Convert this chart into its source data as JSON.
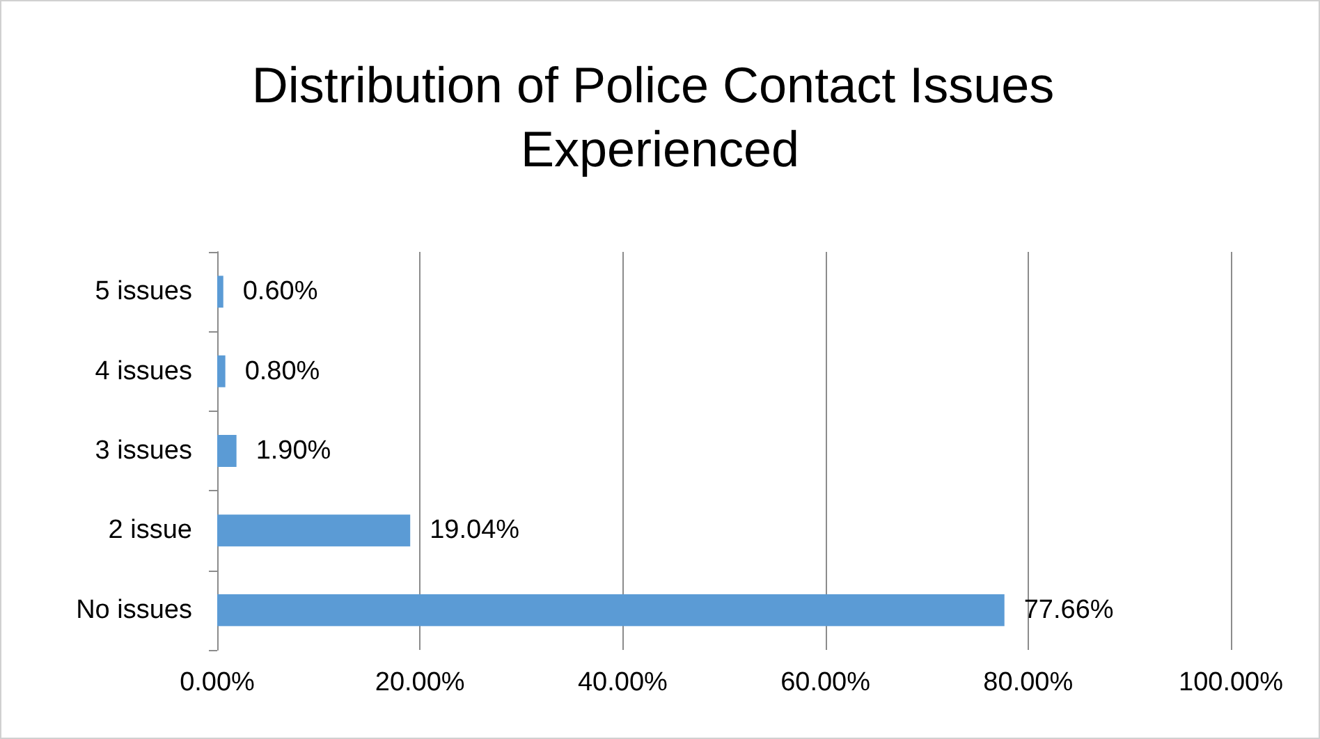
{
  "chart_data": {
    "type": "bar",
    "orientation": "horizontal",
    "title": "Distribution of Police Contact Issues Experienced",
    "categories": [
      "5 issues",
      "4 issues",
      "3 issues",
      "2 issue",
      "No issues"
    ],
    "values": [
      0.6,
      0.8,
      1.9,
      19.04,
      77.66
    ],
    "value_labels": [
      "0.60%",
      "0.80%",
      "1.90%",
      "19.04%",
      "77.66%"
    ],
    "color": "#5b9bd5",
    "xlim": [
      0,
      100
    ],
    "xticks": [
      {
        "value": 0,
        "label": "0.00%"
      },
      {
        "value": 20,
        "label": "20.00%"
      },
      {
        "value": 40,
        "label": "40.00%"
      },
      {
        "value": 60,
        "label": "60.00%"
      },
      {
        "value": 80,
        "label": "80.00%"
      },
      {
        "value": 100,
        "label": "100.00%"
      }
    ],
    "grid": "x"
  }
}
